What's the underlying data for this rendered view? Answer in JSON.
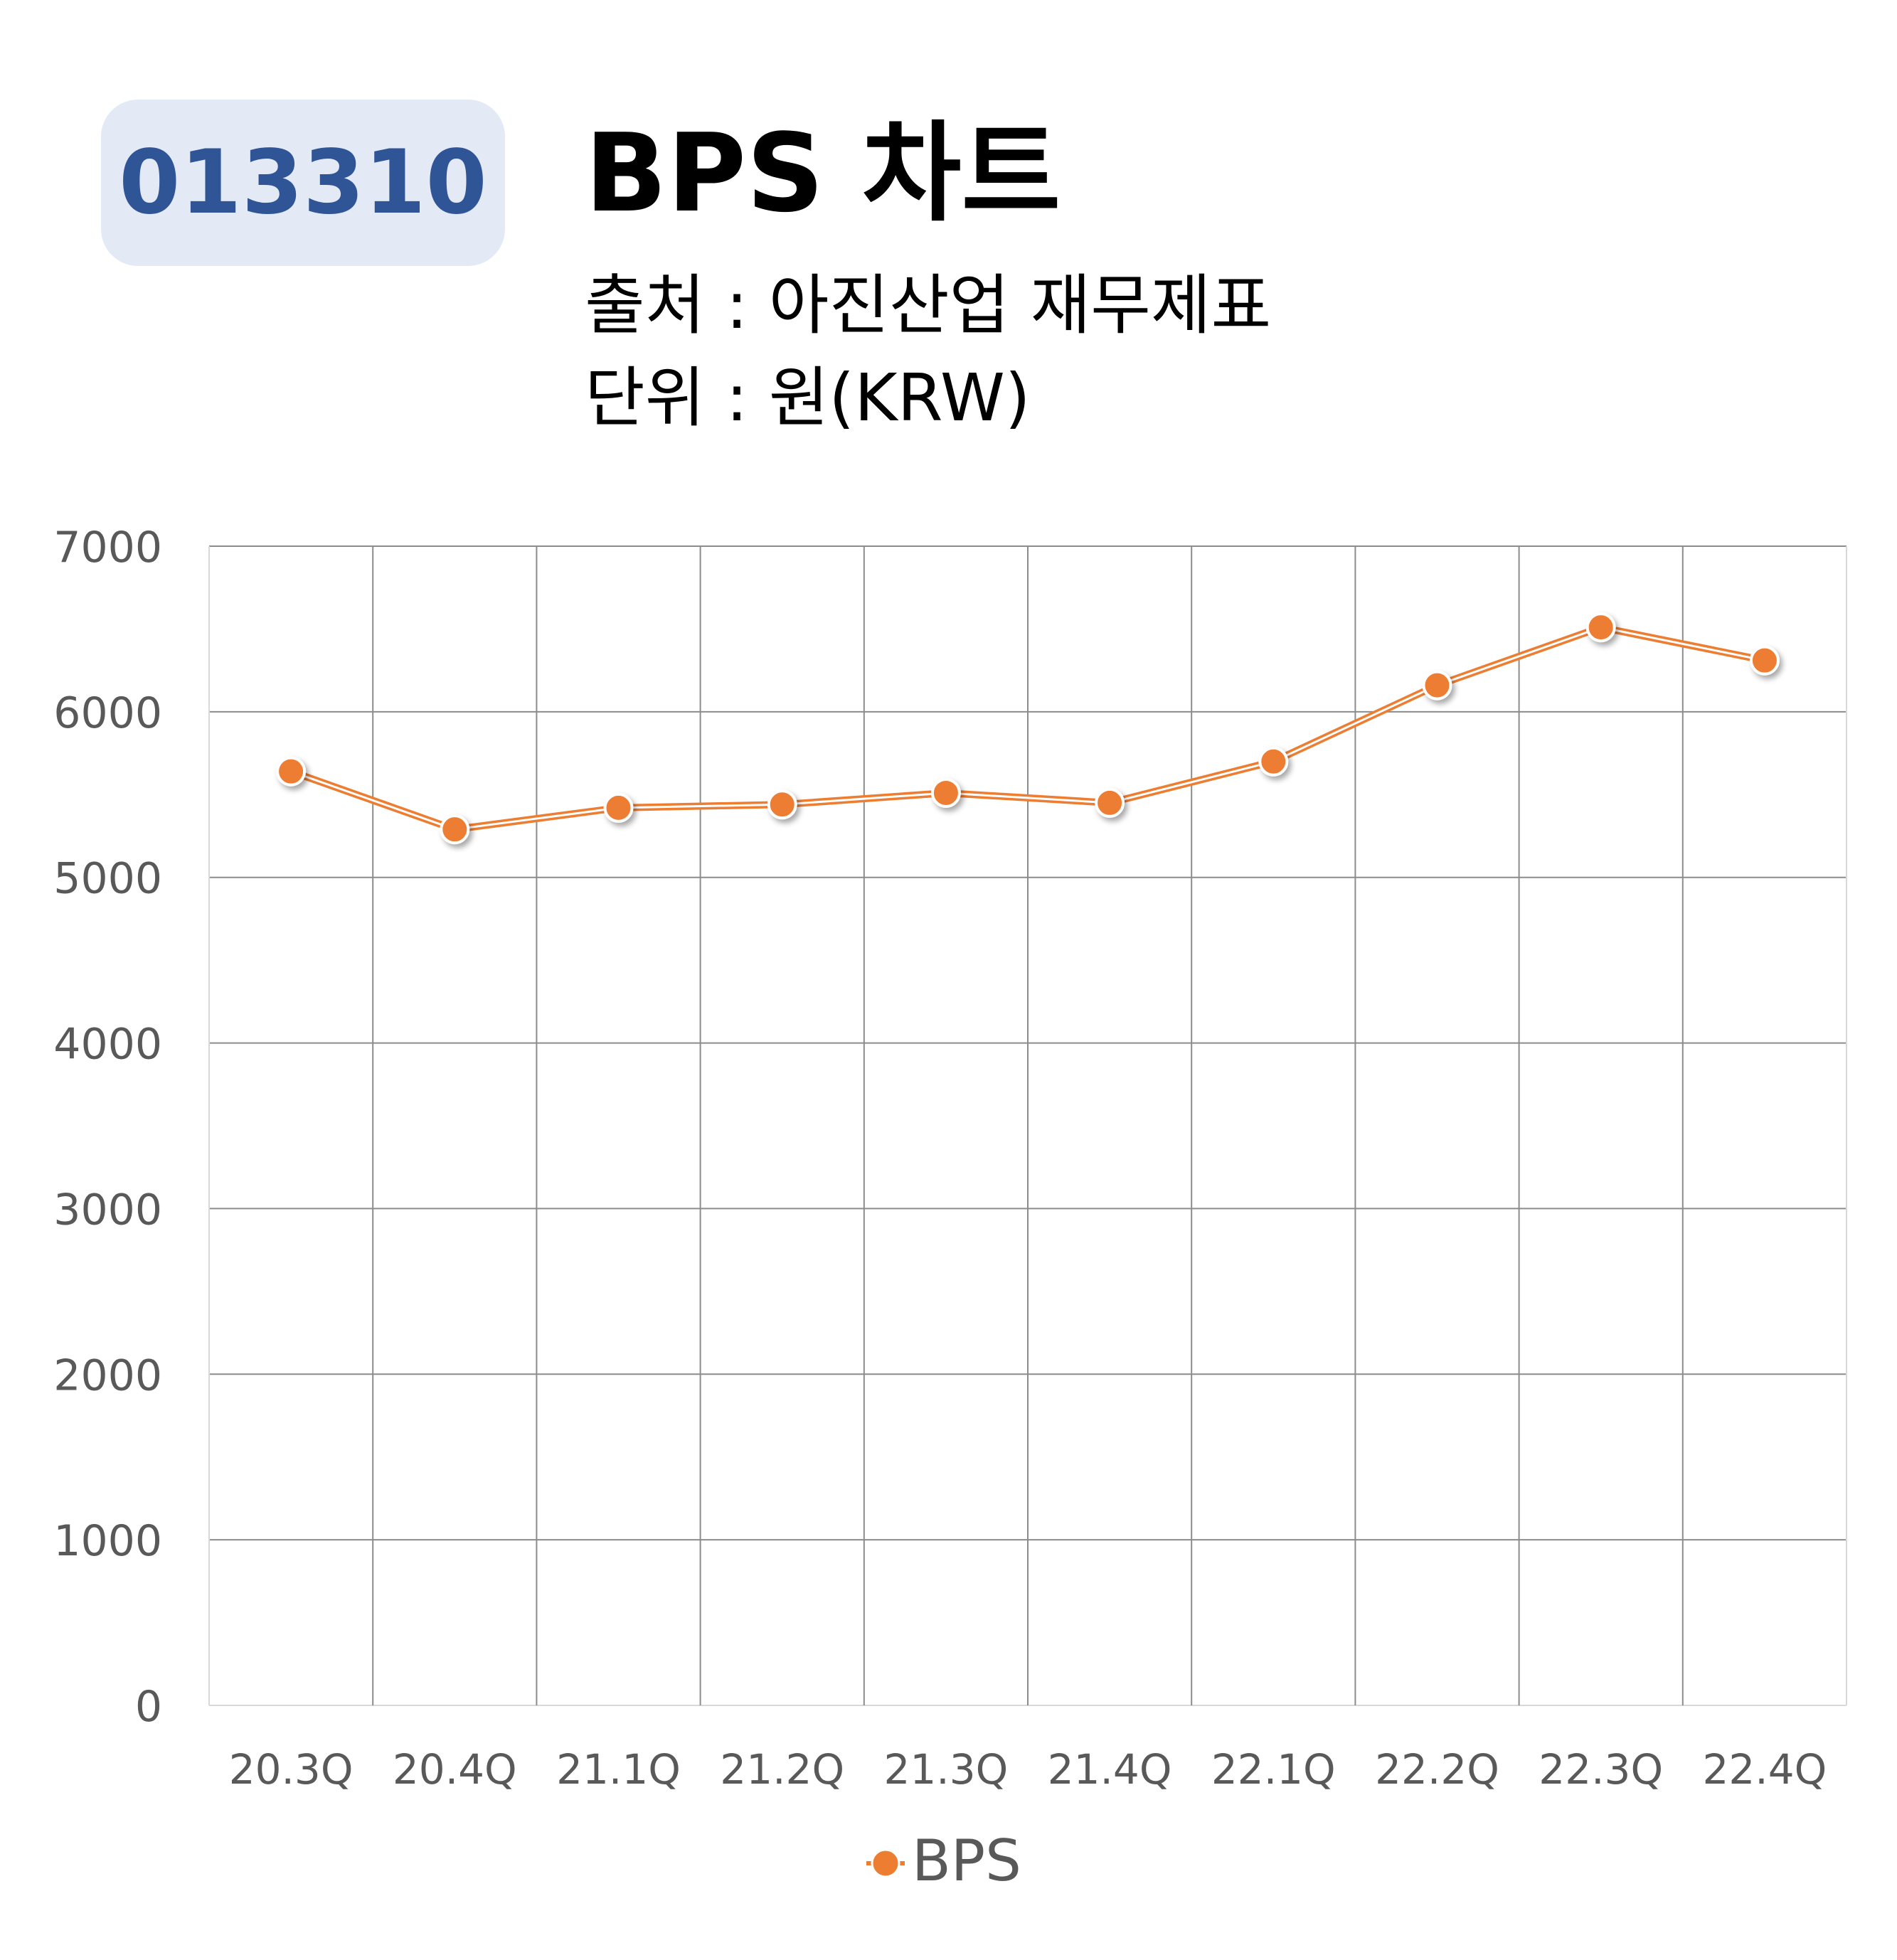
{
  "header": {
    "code": "013310",
    "title": "BPS 차트",
    "source": "출처 : 아진산업 재무제표",
    "unit": "단위 : 원(KRW)"
  },
  "chart_data": {
    "type": "line",
    "categories": [
      "20.3Q",
      "20.4Q",
      "21.1Q",
      "21.2Q",
      "21.3Q",
      "21.4Q",
      "22.1Q",
      "22.2Q",
      "22.3Q",
      "22.4Q"
    ],
    "series": [
      {
        "name": "BPS",
        "values": [
          5640,
          5290,
          5420,
          5440,
          5510,
          5450,
          5700,
          6160,
          6510,
          6310
        ],
        "color": "#ed7d31"
      }
    ],
    "yticks": [
      0,
      1000,
      2000,
      3000,
      4000,
      5000,
      6000,
      7000
    ],
    "ylim": [
      0,
      7000
    ],
    "grid": true,
    "legend_position": "bottom"
  }
}
